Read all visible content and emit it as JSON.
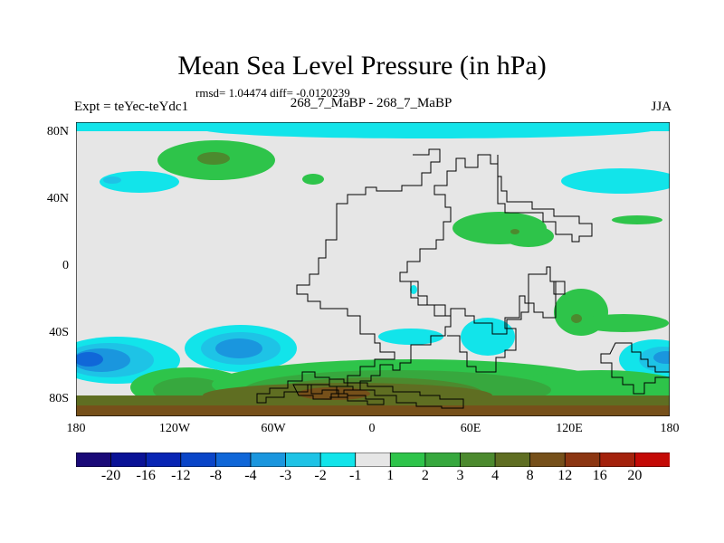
{
  "title": "Mean Sea Level Pressure (in hPa)",
  "stats": "rmsd= 1.04474 diff= -0.0120239",
  "expt_label": "Expt = teYec-teYdc1",
  "experiment_pair": "268_7_MaBP - 268_7_MaBP",
  "season": "JJA",
  "lat_ticks": [
    "80N",
    "40N",
    "0",
    "40S",
    "80S"
  ],
  "lon_ticks": [
    "180",
    "120W",
    "60W",
    "0",
    "60E",
    "120E",
    "180"
  ],
  "colorbar": {
    "labels": [
      "-20",
      "-16",
      "-12",
      "-8",
      "-4",
      "-3",
      "-2",
      "-1",
      "1",
      "2",
      "3",
      "4",
      "8",
      "12",
      "16",
      "20"
    ],
    "colors": [
      "#1a0a78",
      "#0a1296",
      "#0825b4",
      "#0a45c8",
      "#1067d8",
      "#1a96de",
      "#1ec3e6",
      "#12e4ea",
      "#e6e6e6",
      "#2ec44a",
      "#37a83e",
      "#4c8a2e",
      "#5f6e22",
      "#76501a",
      "#8c3612",
      "#a4220c",
      "#c40a06"
    ]
  },
  "colors": {
    "background_zero": "#e6e6e6",
    "land_outline": "#000000"
  }
}
